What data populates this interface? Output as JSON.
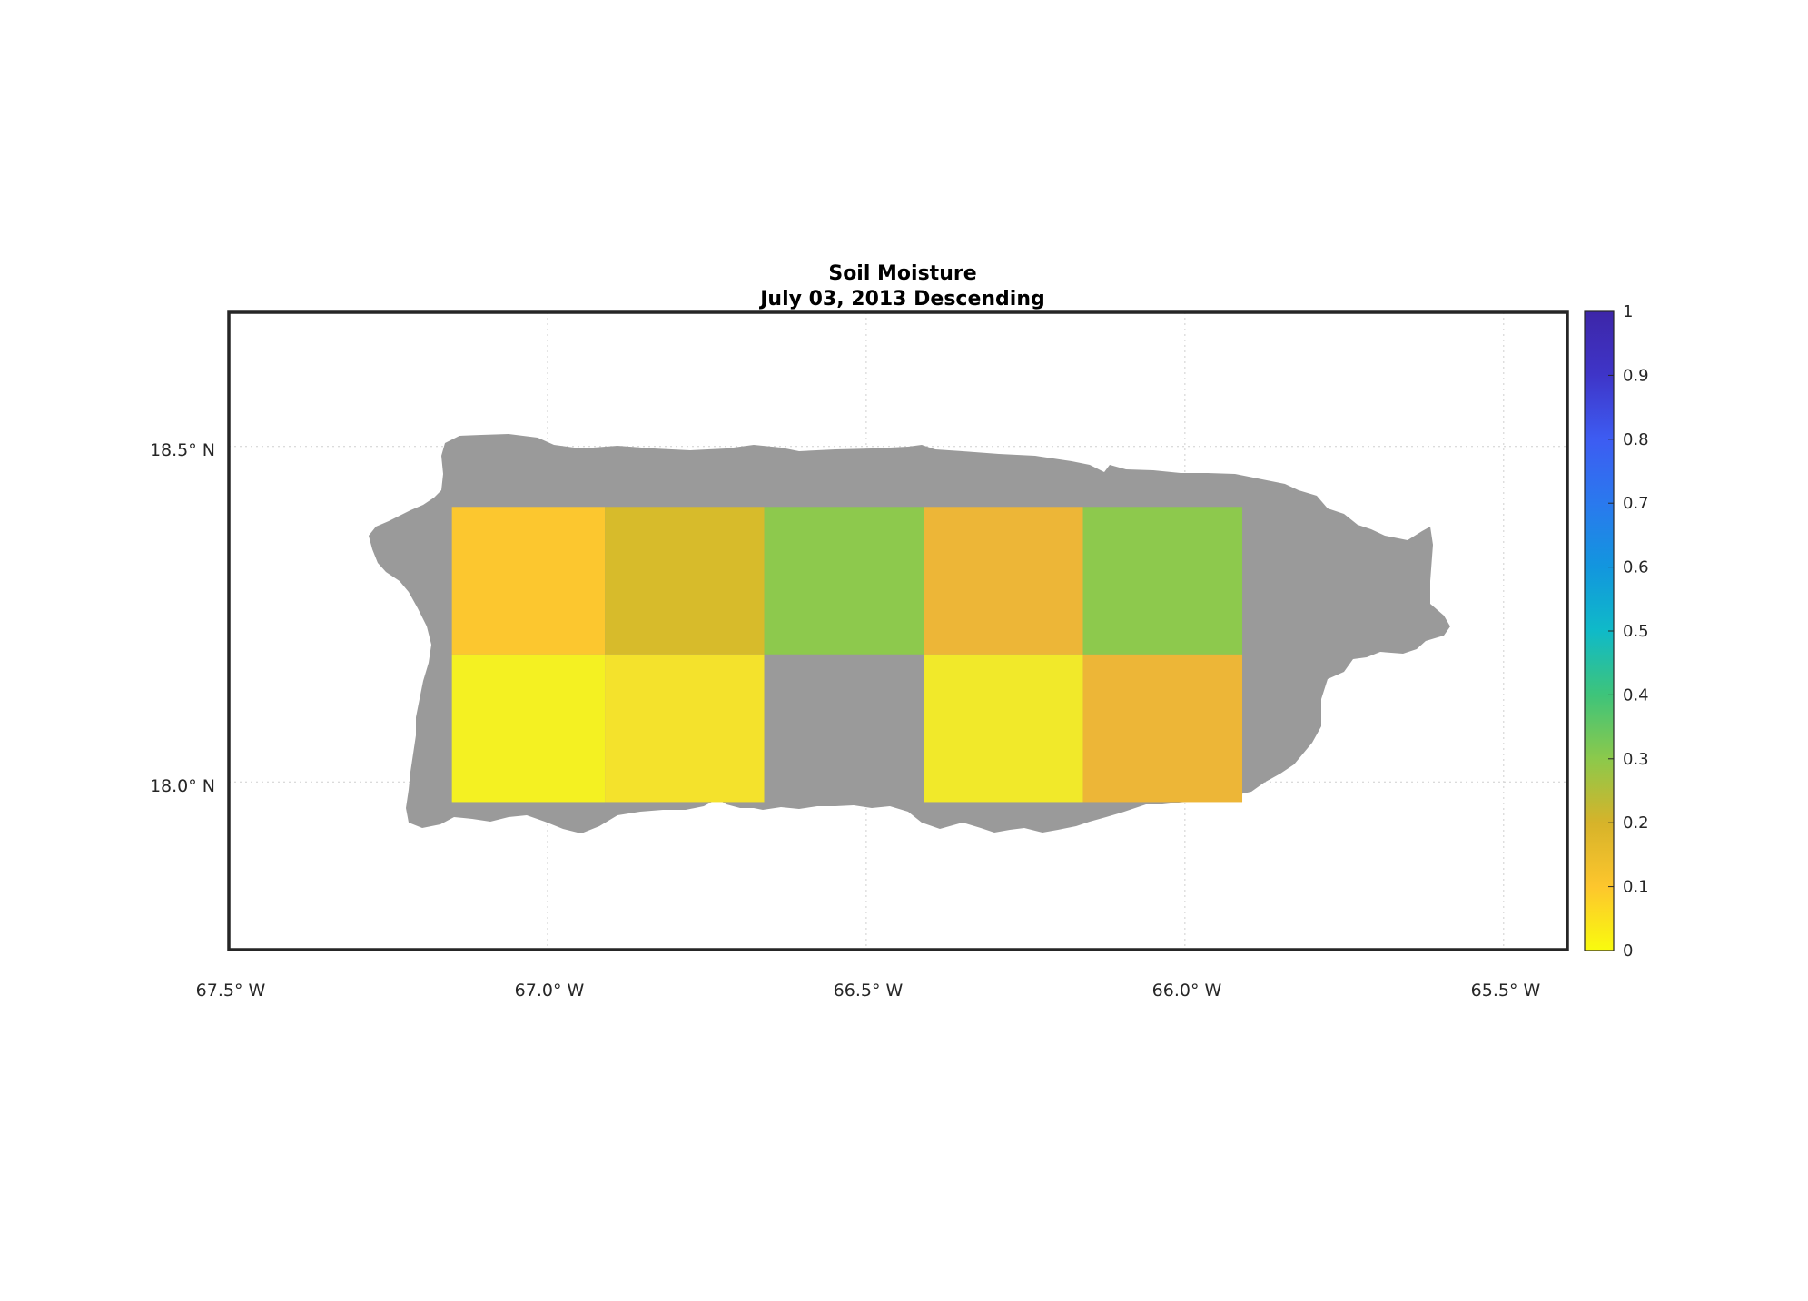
{
  "title": {
    "line1": "Soil Moisture",
    "line2": "July 03, 2013 Descending"
  },
  "axes": {
    "x_ticks": [
      "67.5° W",
      "67.0° W",
      "66.5° W",
      "66.0° W",
      "65.5° W"
    ],
    "y_ticks": [
      "18.5° N",
      "18.0° N"
    ],
    "grid": true
  },
  "colorbar": {
    "ticks": [
      "0",
      "0.1",
      "0.2",
      "0.3",
      "0.4",
      "0.5",
      "0.6",
      "0.7",
      "0.8",
      "0.9",
      "1"
    ],
    "range": [
      0,
      1
    ],
    "colormap": "parula_reversed",
    "colors": [
      "#f9fb0e",
      "#fdc62d",
      "#d6b32a",
      "#8cc94b",
      "#3ec47a",
      "#0fbac8",
      "#1296de",
      "#2a79ee",
      "#3d5cf2",
      "#3e35c8",
      "#3d26a8"
    ]
  },
  "map": {
    "land_color": "#9a9a9a",
    "region": "Puerto Rico",
    "lon_range": [
      -67.5,
      -65.4
    ],
    "lat_range": [
      17.75,
      18.7
    ]
  },
  "chart_data": {
    "type": "heatmap",
    "title": "Soil Moisture\nJuly 03, 2013 Descending",
    "xlabel": "",
    "ylabel": "",
    "xlim": [
      -67.5,
      -65.4
    ],
    "ylim": [
      17.75,
      18.7
    ],
    "cells": [
      {
        "lon_min": -67.15,
        "lon_max": -66.91,
        "lat_min": 18.19,
        "lat_max": 18.41,
        "value": 0.12,
        "color": "#fcc72f"
      },
      {
        "lon_min": -66.91,
        "lon_max": -66.66,
        "lat_min": 18.19,
        "lat_max": 18.41,
        "value": 0.23,
        "color": "#d7bb2b"
      },
      {
        "lon_min": -66.66,
        "lon_max": -66.41,
        "lat_min": 18.19,
        "lat_max": 18.41,
        "value": 0.33,
        "color": "#8dc94d"
      },
      {
        "lon_min": -66.41,
        "lon_max": -66.16,
        "lat_min": 18.19,
        "lat_max": 18.41,
        "value": 0.17,
        "color": "#edb637"
      },
      {
        "lon_min": -66.16,
        "lon_max": -65.91,
        "lat_min": 18.19,
        "lat_max": 18.41,
        "value": 0.33,
        "color": "#8dc94d"
      },
      {
        "lon_min": -67.15,
        "lon_max": -66.91,
        "lat_min": 17.97,
        "lat_max": 18.19,
        "value": 0.01,
        "color": "#f4f122"
      },
      {
        "lon_min": -66.91,
        "lon_max": -66.66,
        "lat_min": 17.97,
        "lat_max": 18.19,
        "value": 0.04,
        "color": "#f4e22c"
      },
      {
        "lon_min": -66.41,
        "lon_max": -66.16,
        "lat_min": 17.97,
        "lat_max": 18.19,
        "value": 0.03,
        "color": "#f1e92a"
      },
      {
        "lon_min": -66.16,
        "lon_max": -65.91,
        "lat_min": 17.97,
        "lat_max": 18.19,
        "value": 0.17,
        "color": "#edb637"
      }
    ],
    "no_data_cells": [
      {
        "lon_min": -66.66,
        "lon_max": -66.41,
        "lat_min": 17.97,
        "lat_max": 18.19
      }
    ]
  }
}
